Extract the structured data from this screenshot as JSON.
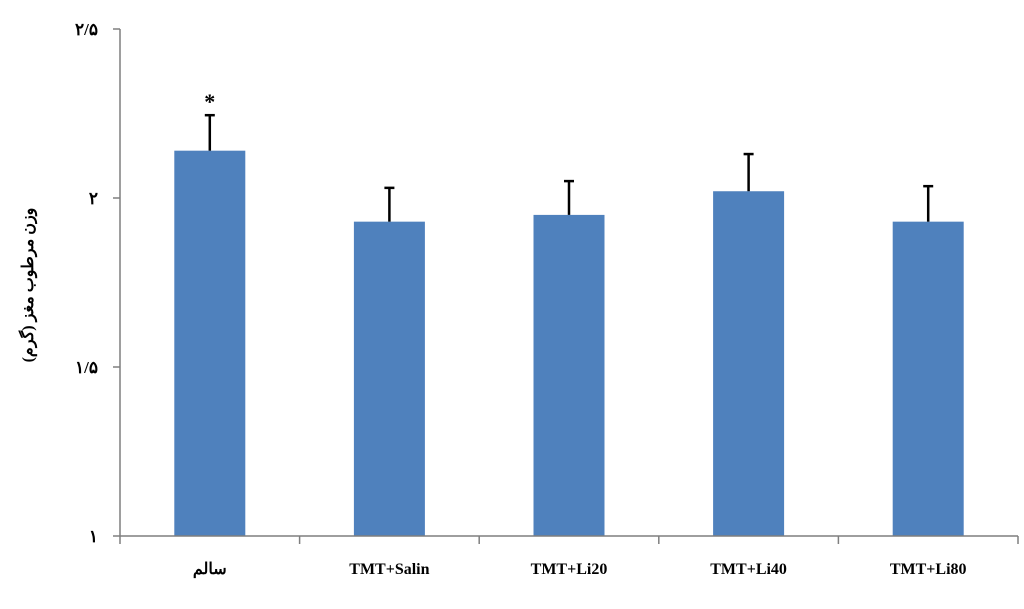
{
  "chart_data": {
    "type": "bar",
    "title": "",
    "xlabel": "",
    "ylabel": "وزن مرطوب مغز (گرم)",
    "categories": [
      "سالم",
      "TMT+Salin",
      "TMT+Li20",
      "TMT+Li40",
      "TMT+Li80"
    ],
    "values": [
      2.14,
      1.93,
      1.95,
      2.02,
      1.93
    ],
    "error": [
      0.105,
      0.1,
      0.1,
      0.11,
      0.105
    ],
    "ylim": [
      1,
      2.5
    ],
    "yticks": [
      1,
      1.5,
      2,
      2.5
    ],
    "ytick_labels": [
      "١",
      "١/۵",
      "٢",
      "٢/۵"
    ],
    "annotations": [
      {
        "category_index": 0,
        "text": "*"
      }
    ],
    "grid": false,
    "legend": "none",
    "bar_color": "#4f81bd",
    "axis_color": "#7f7f7f",
    "errorbar_color": "#000000"
  }
}
